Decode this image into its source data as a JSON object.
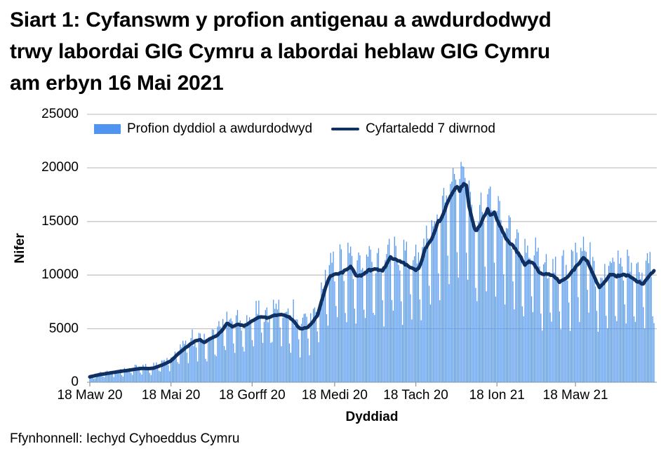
{
  "header": {
    "title_lines": [
      "Siart 1: Cyfanswm y profion antigenau a awdurdodwyd",
      "trwy labordai GIG Cymru a labordai heblaw GIG Cymru",
      "am erbyn 16 Mai 2021"
    ]
  },
  "footer": {
    "source": "Ffynhonnell: Iechyd Cyhoeddus Cymru"
  },
  "chart_data": {
    "type": "bar",
    "title": "Siart 1: Cyfanswm y profion antigenau a awdurdodwyd trwy labordai GIG Cymru a labordai heblaw GIG Cymru am erbyn 16 Mai 2021",
    "xlabel": "Dyddiad",
    "ylabel": "Nifer",
    "ylim": [
      0,
      25000
    ],
    "yticks": [
      0,
      5000,
      10000,
      15000,
      20000,
      25000
    ],
    "grid": "horizontal-only",
    "legend_position": "top-left-inside",
    "x_days_total": 424,
    "xticks": [
      {
        "day": 0,
        "label": "18 Maw 20"
      },
      {
        "day": 61,
        "label": "18 Mai 20"
      },
      {
        "day": 122,
        "label": "18 Gorff 20"
      },
      {
        "day": 184,
        "label": "18 Medi 20"
      },
      {
        "day": 245,
        "label": "18 Tach 20"
      },
      {
        "day": 306,
        "label": "18 Ion 21"
      },
      {
        "day": 365,
        "label": "18 Maw 21"
      }
    ],
    "series": [
      {
        "name": "Profion dyddiol a awdurdodwyd",
        "type": "bar",
        "color": "#4F94F0"
      },
      {
        "name": "Cyfartaledd 7 diwrnod",
        "type": "line",
        "color": "#0F3060"
      }
    ],
    "line_7day_anchors": [
      [
        0,
        500
      ],
      [
        4,
        620
      ],
      [
        8,
        720
      ],
      [
        12,
        800
      ],
      [
        16,
        880
      ],
      [
        20,
        960
      ],
      [
        24,
        1030
      ],
      [
        28,
        1100
      ],
      [
        32,
        1180
      ],
      [
        36,
        1250
      ],
      [
        40,
        1300
      ],
      [
        44,
        1280
      ],
      [
        48,
        1320
      ],
      [
        52,
        1500
      ],
      [
        56,
        1700
      ],
      [
        61,
        2000
      ],
      [
        66,
        2610
      ],
      [
        71,
        3130
      ],
      [
        76,
        3590
      ],
      [
        80,
        3900
      ],
      [
        83,
        3950
      ],
      [
        86,
        3720
      ],
      [
        89,
        3950
      ],
      [
        93,
        4200
      ],
      [
        96,
        4400
      ],
      [
        99,
        4800
      ],
      [
        101,
        5100
      ],
      [
        103,
        5500
      ],
      [
        107,
        5200
      ],
      [
        112,
        5400
      ],
      [
        116,
        5250
      ],
      [
        122,
        5700
      ],
      [
        128,
        6100
      ],
      [
        134,
        6000
      ],
      [
        139,
        6250
      ],
      [
        144,
        6320
      ],
      [
        149,
        6150
      ],
      [
        152,
        5870
      ],
      [
        155,
        5400
      ],
      [
        158,
        5000
      ],
      [
        161,
        5050
      ],
      [
        164,
        5150
      ],
      [
        167,
        5540
      ],
      [
        171,
        6200
      ],
      [
        174,
        7500
      ],
      [
        177,
        8800
      ],
      [
        180,
        9800
      ],
      [
        183,
        10000
      ],
      [
        186,
        10100
      ],
      [
        189,
        10200
      ],
      [
        193,
        10500
      ],
      [
        196,
        10800
      ],
      [
        200,
        10000
      ],
      [
        204,
        9900
      ],
      [
        209,
        10430
      ],
      [
        215,
        10550
      ],
      [
        220,
        10430
      ],
      [
        223,
        11000
      ],
      [
        226,
        11700
      ],
      [
        230,
        11400
      ],
      [
        236,
        11100
      ],
      [
        241,
        10750
      ],
      [
        245,
        10450
      ],
      [
        248,
        10800
      ],
      [
        250,
        11550
      ],
      [
        252,
        12500
      ],
      [
        257,
        13360
      ],
      [
        262,
        15000
      ],
      [
        264,
        15200
      ],
      [
        267,
        16200
      ],
      [
        270,
        17100
      ],
      [
        273,
        17750
      ],
      [
        276,
        18200
      ],
      [
        278,
        17950
      ],
      [
        281,
        18600
      ],
      [
        283,
        18400
      ],
      [
        285,
        16500
      ],
      [
        288,
        14800
      ],
      [
        290,
        14150
      ],
      [
        292,
        14400
      ],
      [
        294,
        14900
      ],
      [
        297,
        15700
      ],
      [
        299,
        16100
      ],
      [
        301,
        15500
      ],
      [
        304,
        15850
      ],
      [
        307,
        14900
      ],
      [
        312,
        13560
      ],
      [
        318,
        12700
      ],
      [
        323,
        11860
      ],
      [
        327,
        10950
      ],
      [
        330,
        11300
      ],
      [
        334,
        11050
      ],
      [
        338,
        10150
      ],
      [
        344,
        10100
      ],
      [
        349,
        9880
      ],
      [
        353,
        9350
      ],
      [
        357,
        9650
      ],
      [
        362,
        10250
      ],
      [
        367,
        11000
      ],
      [
        371,
        11650
      ],
      [
        374,
        11300
      ],
      [
        379,
        9900
      ],
      [
        383,
        8800
      ],
      [
        387,
        9400
      ],
      [
        391,
        10100
      ],
      [
        396,
        9900
      ],
      [
        401,
        10050
      ],
      [
        406,
        9880
      ],
      [
        411,
        9450
      ],
      [
        416,
        9150
      ],
      [
        420,
        9880
      ],
      [
        424,
        10400
      ]
    ],
    "bars": {
      "derivation": "daily bars oscillate around 7-day average with weekday pattern",
      "weekday_factors_mon_to_sun": [
        1.06,
        1.1,
        1.08,
        1.05,
        1.0,
        0.66,
        0.52
      ],
      "start_weekday_index": 2,
      "noise_base": 0.5,
      "noise_fade_value": 22000
    },
    "colors": {
      "bar": "#4F94F0",
      "line": "#0F3060",
      "grid": "#C6C6C6",
      "axis": "#ABABAB",
      "tick": "#999999",
      "text": "#000000"
    }
  }
}
